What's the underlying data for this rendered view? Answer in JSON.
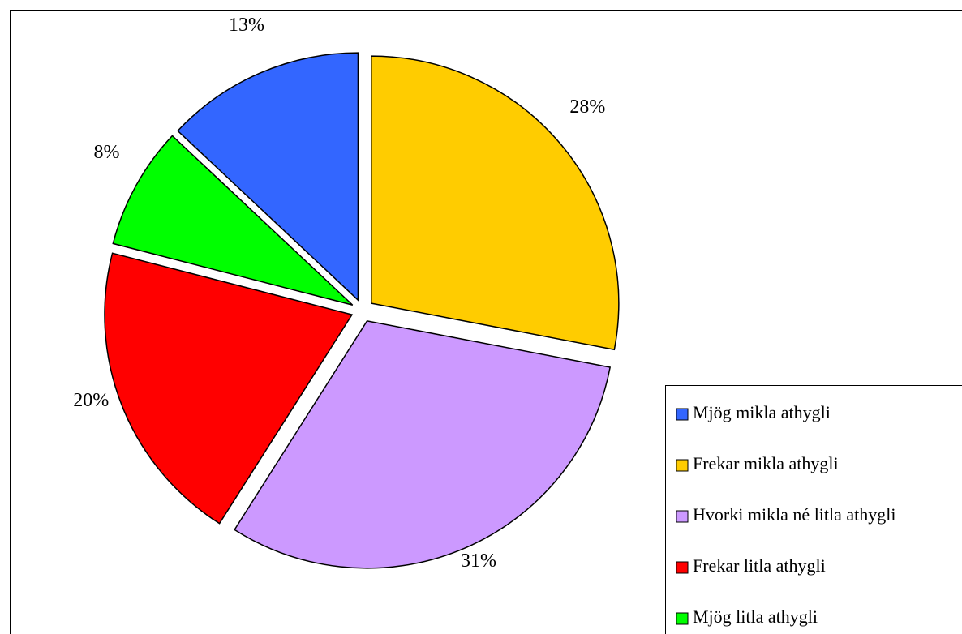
{
  "chart_data": {
    "type": "pie",
    "categories": [
      "Mjög mikla athygli",
      "Frekar mikla athygli",
      "Hvorki mikla né litla athygli",
      "Frekar litla athygli",
      "Mjög litla athygli"
    ],
    "values": [
      13,
      28,
      31,
      20,
      8
    ],
    "value_labels": [
      "13%",
      "28%",
      "31%",
      "20%",
      "8%"
    ],
    "colors": [
      "#3366ff",
      "#ffcc00",
      "#cc99ff",
      "#ff0000",
      "#00ff00"
    ],
    "legend": "bottom-right"
  }
}
